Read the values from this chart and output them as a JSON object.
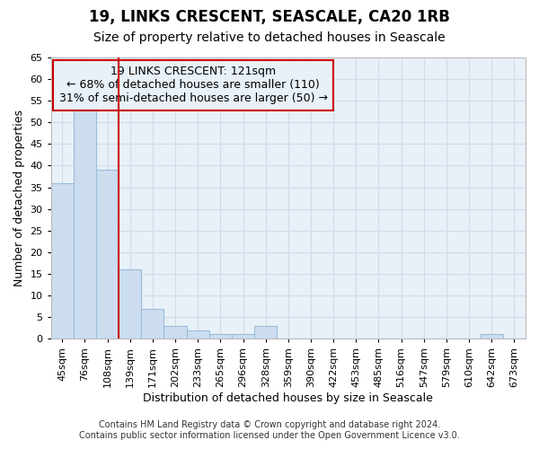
{
  "title1": "19, LINKS CRESCENT, SEASCALE, CA20 1RB",
  "title2": "Size of property relative to detached houses in Seascale",
  "xlabel": "Distribution of detached houses by size in Seascale",
  "ylabel": "Number of detached properties",
  "footnote1": "Contains HM Land Registry data © Crown copyright and database right 2024.",
  "footnote2": "Contains public sector information licensed under the Open Government Licence v3.0.",
  "annotation_line1": "19 LINKS CRESCENT: 121sqm",
  "annotation_line2": "← 68% of detached houses are smaller (110)",
  "annotation_line3": "31% of semi-detached houses are larger (50) →",
  "bar_labels": [
    "45sqm",
    "76sqm",
    "108sqm",
    "139sqm",
    "171sqm",
    "202sqm",
    "233sqm",
    "265sqm",
    "296sqm",
    "328sqm",
    "359sqm",
    "390sqm",
    "422sqm",
    "453sqm",
    "485sqm",
    "516sqm",
    "547sqm",
    "579sqm",
    "610sqm",
    "642sqm",
    "673sqm"
  ],
  "bar_values": [
    36,
    53,
    39,
    16,
    7,
    3,
    2,
    1,
    1,
    3,
    0,
    0,
    0,
    0,
    0,
    0,
    0,
    0,
    0,
    1,
    0
  ],
  "bar_color": "#ccddf0",
  "bar_edge_color": "#9bbcd8",
  "grid_color": "#d0dce8",
  "background_color": "#ffffff",
  "plot_bg_color": "#e8f0f8",
  "vline_color": "#cc0000",
  "vline_x_index": 2.5,
  "ylim": [
    0,
    65
  ],
  "yticks": [
    0,
    5,
    10,
    15,
    20,
    25,
    30,
    35,
    40,
    45,
    50,
    55,
    60,
    65
  ],
  "annotation_box_edge_color": "#cc0000",
  "title_fontsize": 12,
  "subtitle_fontsize": 10,
  "axis_label_fontsize": 9,
  "tick_fontsize": 8,
  "annotation_fontsize": 9,
  "footnote_fontsize": 7
}
